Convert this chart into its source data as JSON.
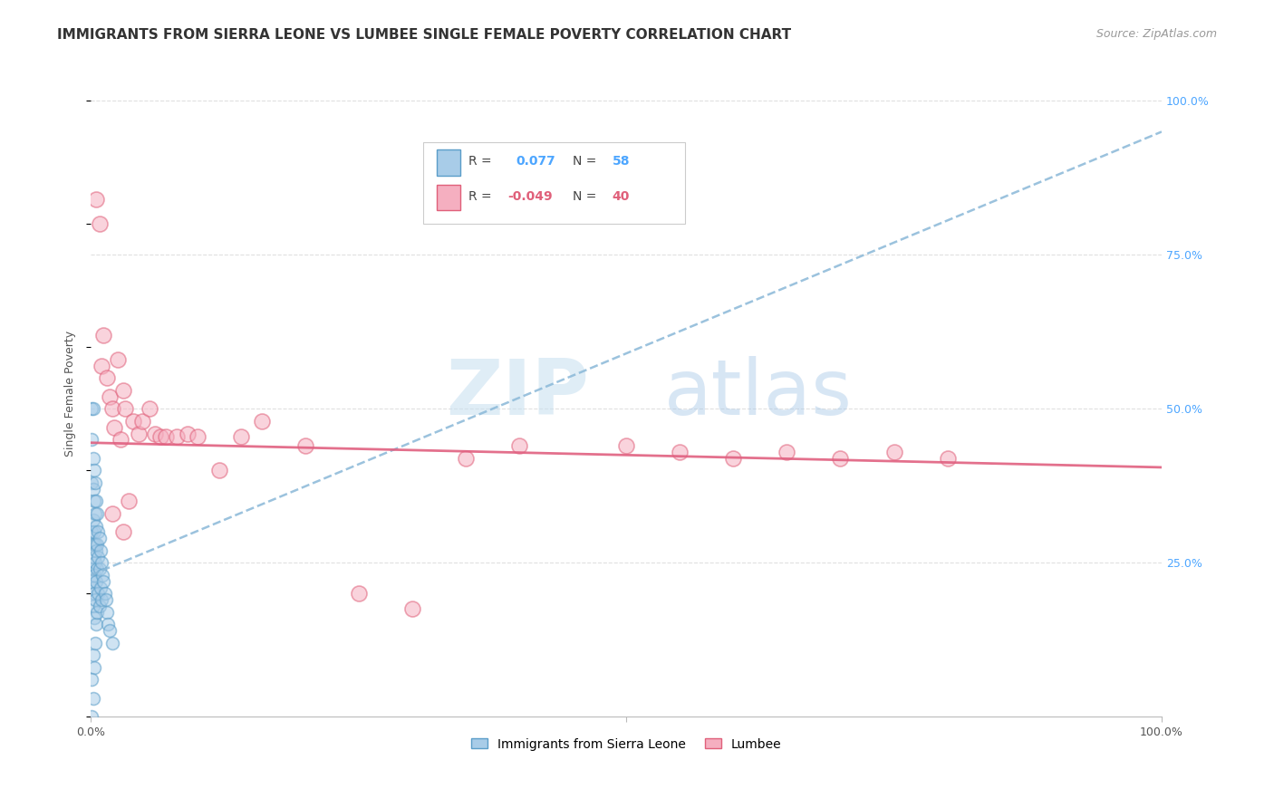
{
  "title": "IMMIGRANTS FROM SIERRA LEONE VS LUMBEE SINGLE FEMALE POVERTY CORRELATION CHART",
  "source": "Source: ZipAtlas.com",
  "ylabel": "Single Female Poverty",
  "legend_label_blue": "Immigrants from Sierra Leone",
  "legend_label_pink": "Lumbee",
  "r_blue": "0.077",
  "n_blue": "58",
  "r_pink": "-0.049",
  "n_pink": "40",
  "watermark_zip": "ZIP",
  "watermark_atlas": "atlas",
  "blue_fill": "#a8cce8",
  "blue_edge": "#5b9ec9",
  "pink_fill": "#f5afc0",
  "pink_edge": "#e0607a",
  "blue_line_color": "#8ab8d8",
  "pink_line_color": "#e06080",
  "grid_color": "#e0e0e0",
  "r_blue_color": "#4da6ff",
  "r_pink_color": "#e0607a",
  "n_blue_color": "#4da6ff",
  "n_pink_color": "#e0607a",
  "right_axis_color": "#4da6ff",
  "bg_color": "#ffffff",
  "title_color": "#333333",
  "source_color": "#999999",
  "label_color": "#555555",
  "blue_x": [
    0.001,
    0.001,
    0.001,
    0.001,
    0.001,
    0.002,
    0.002,
    0.002,
    0.002,
    0.002,
    0.002,
    0.002,
    0.002,
    0.002,
    0.003,
    0.003,
    0.003,
    0.003,
    0.003,
    0.003,
    0.003,
    0.003,
    0.004,
    0.004,
    0.004,
    0.004,
    0.004,
    0.004,
    0.005,
    0.005,
    0.005,
    0.005,
    0.005,
    0.006,
    0.006,
    0.006,
    0.006,
    0.007,
    0.007,
    0.007,
    0.008,
    0.008,
    0.008,
    0.009,
    0.009,
    0.01,
    0.01,
    0.011,
    0.012,
    0.013,
    0.014,
    0.015,
    0.016,
    0.018,
    0.02,
    0.001,
    0.002,
    0.001
  ],
  "blue_y": [
    0.5,
    0.45,
    0.38,
    0.3,
    0.22,
    0.5,
    0.42,
    0.37,
    0.32,
    0.28,
    0.24,
    0.21,
    0.18,
    0.1,
    0.4,
    0.35,
    0.3,
    0.26,
    0.23,
    0.2,
    0.16,
    0.08,
    0.38,
    0.33,
    0.28,
    0.25,
    0.19,
    0.12,
    0.35,
    0.31,
    0.27,
    0.22,
    0.15,
    0.33,
    0.28,
    0.24,
    0.17,
    0.3,
    0.26,
    0.2,
    0.29,
    0.24,
    0.18,
    0.27,
    0.21,
    0.25,
    0.19,
    0.23,
    0.22,
    0.2,
    0.19,
    0.17,
    0.15,
    0.14,
    0.12,
    0.06,
    0.03,
    0.0
  ],
  "pink_x": [
    0.005,
    0.008,
    0.01,
    0.012,
    0.015,
    0.018,
    0.02,
    0.022,
    0.025,
    0.028,
    0.03,
    0.032,
    0.035,
    0.04,
    0.045,
    0.048,
    0.055,
    0.06,
    0.065,
    0.07,
    0.08,
    0.09,
    0.1,
    0.12,
    0.14,
    0.16,
    0.2,
    0.25,
    0.3,
    0.35,
    0.4,
    0.5,
    0.55,
    0.6,
    0.65,
    0.7,
    0.75,
    0.8,
    0.02,
    0.03
  ],
  "pink_y": [
    0.84,
    0.8,
    0.57,
    0.62,
    0.55,
    0.52,
    0.5,
    0.47,
    0.58,
    0.45,
    0.53,
    0.5,
    0.35,
    0.48,
    0.46,
    0.48,
    0.5,
    0.46,
    0.455,
    0.455,
    0.455,
    0.46,
    0.455,
    0.4,
    0.455,
    0.48,
    0.44,
    0.2,
    0.175,
    0.42,
    0.44,
    0.44,
    0.43,
    0.42,
    0.43,
    0.42,
    0.43,
    0.42,
    0.33,
    0.3
  ],
  "blue_line_x": [
    0.0,
    1.0
  ],
  "blue_line_y": [
    0.23,
    0.95
  ],
  "pink_line_x": [
    0.0,
    1.0
  ],
  "pink_line_y": [
    0.445,
    0.405
  ],
  "xlim": [
    0.0,
    1.0
  ],
  "ylim": [
    0.0,
    1.05
  ],
  "yticks": [
    0.25,
    0.5,
    0.75,
    1.0
  ],
  "yticklabels": [
    "25.0%",
    "50.0%",
    "75.0%",
    "100.0%"
  ],
  "title_fontsize": 11,
  "source_fontsize": 9,
  "tick_fontsize": 9,
  "marker_size": 100,
  "marker_alpha": 0.55,
  "marker_lw": 1.2,
  "line_width": 1.8
}
